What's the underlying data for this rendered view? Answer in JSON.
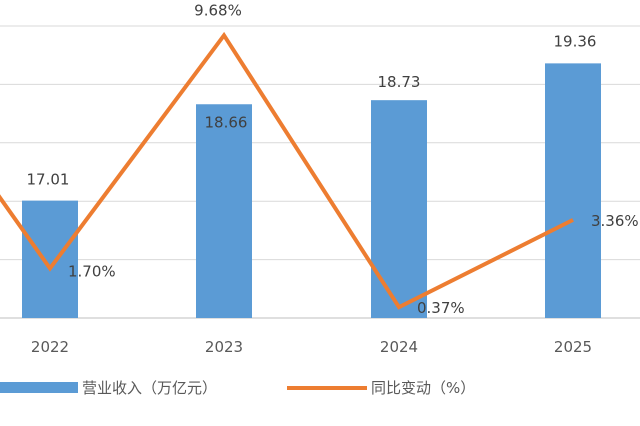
{
  "chart_data": {
    "type": "bar",
    "categories": [
      "2022",
      "2023",
      "2024",
      "2025"
    ],
    "series": [
      {
        "name": "营业收入（万亿元）",
        "kind": "bar",
        "axis": "left",
        "color": "#5b9bd5",
        "values": [
          17.01,
          18.66,
          18.73,
          19.36
        ],
        "labels": [
          "17.01",
          "18.66",
          "18.73",
          "19.36"
        ]
      },
      {
        "name": "同比变动（%）",
        "kind": "line",
        "axis": "right",
        "color": "#ed7d31",
        "values": [
          1.7,
          9.68,
          0.37,
          3.36
        ],
        "labels": [
          "1.70%",
          "9.68%",
          "0.37%",
          "3.36%"
        ]
      }
    ],
    "y_left_range": [
      15,
      20
    ],
    "y_right_range": [
      0,
      10
    ],
    "grid": true,
    "legend_position": "bottom",
    "title": "",
    "xlabel": "",
    "ylabel": ""
  }
}
